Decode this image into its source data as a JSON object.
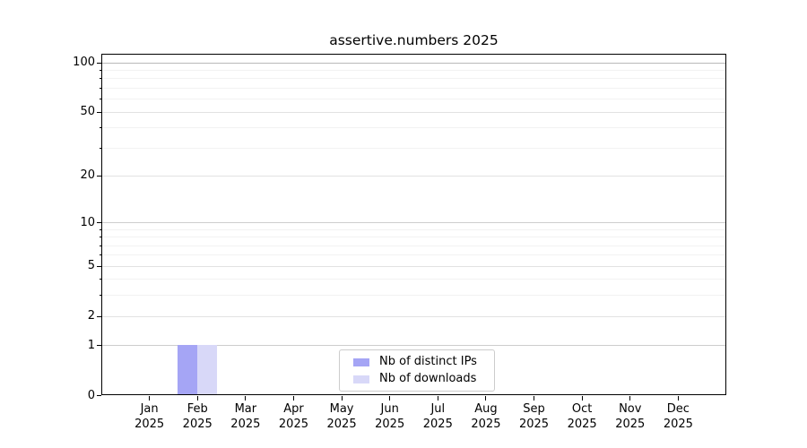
{
  "title": "assertive.numbers 2025",
  "chart_data": {
    "type": "bar",
    "title": "assertive.numbers 2025",
    "xlabel": "",
    "ylabel": "",
    "categories": [
      "Jan",
      "Feb",
      "Mar",
      "Apr",
      "May",
      "Jun",
      "Jul",
      "Aug",
      "Sep",
      "Oct",
      "Nov",
      "Dec"
    ],
    "category_year": "2025",
    "series": [
      {
        "name": "Nb of distinct IPs",
        "color": "#a5a5f5",
        "values": [
          0,
          1,
          0,
          0,
          0,
          0,
          0,
          0,
          0,
          0,
          0,
          0
        ]
      },
      {
        "name": "Nb of downloads",
        "color": "#d8d8f8",
        "values": [
          0,
          1,
          0,
          0,
          0,
          0,
          0,
          0,
          0,
          0,
          0,
          0
        ]
      }
    ],
    "yscale": "log1p",
    "ylim": [
      0,
      113
    ],
    "y_ticks": [
      0,
      1,
      2,
      5,
      10,
      20,
      50,
      100
    ],
    "y_minor_ticks": [
      3,
      4,
      6,
      7,
      8,
      9,
      30,
      40,
      60,
      70,
      80,
      90
    ],
    "grid": "both",
    "legend_position": "lower-center-inside",
    "colors": {
      "background": "#ffffff",
      "axis": "#000000",
      "grid_strong": "#b9b9b9",
      "grid_major": "#cdcdcd",
      "grid_mid": "#e2e2e2",
      "grid_minor": "#f2f2f2",
      "tick_label": "#000000"
    }
  },
  "legend": {
    "items": [
      {
        "label": "Nb of distinct IPs",
        "color": "#a5a5f5"
      },
      {
        "label": "Nb of downloads",
        "color": "#d8d8f8"
      }
    ]
  }
}
